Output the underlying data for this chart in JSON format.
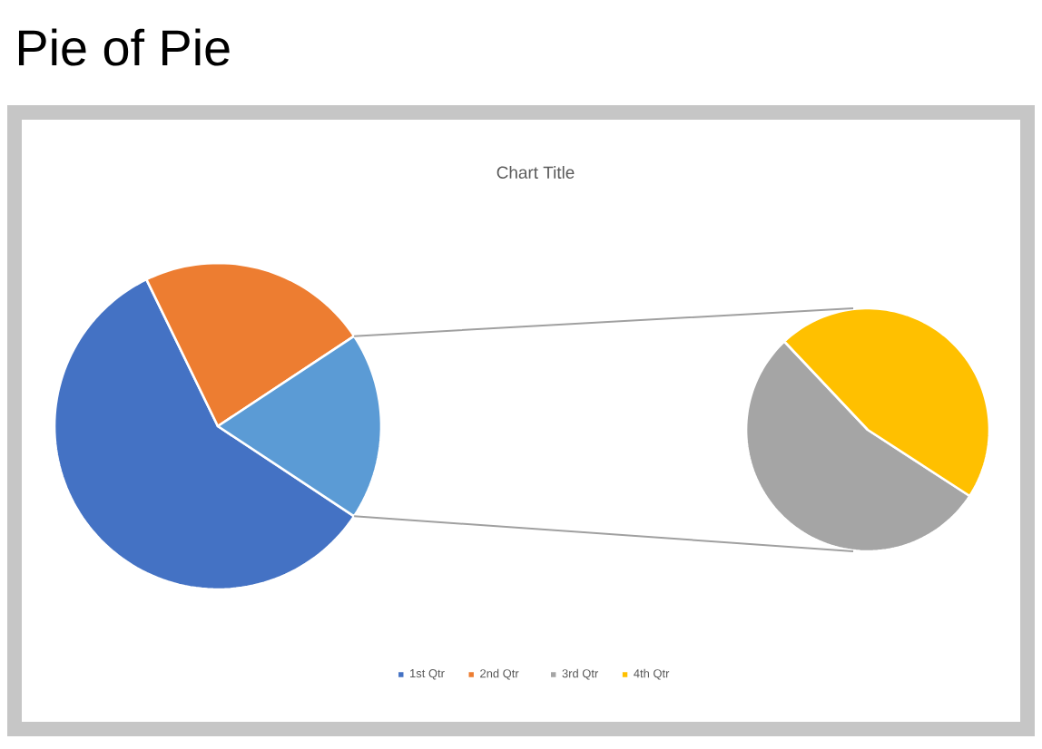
{
  "chart_data": [
    {
      "type": "pie",
      "title": "Pie of Pie",
      "subtitle": "Chart Title",
      "categories": [
        "1st Qtr",
        "2nd Qtr",
        null
      ],
      "values": [
        58.5,
        22.9,
        18.6
      ],
      "colors": [
        "#4472c4",
        "#ed7d31",
        "#5b9bd5"
      ],
      "legend": "bottom"
    },
    {
      "type": "pie",
      "categories": [
        "3rd Qtr",
        "4th Qtr"
      ],
      "values": [
        53.8,
        46.2
      ],
      "colors": [
        "#a5a5a5",
        "#ffc000"
      ],
      "legend": "bottom"
    }
  ]
}
